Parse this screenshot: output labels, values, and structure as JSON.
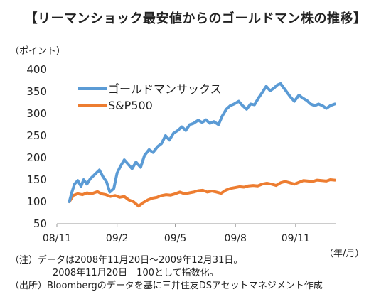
{
  "title": "【リーマンショック最安値からのゴールドマン株の推移】",
  "notes": [
    "（注）データは2008年11月20日～2009年12月31日。",
    "2008年11月20日＝100として指数化。",
    "（出所）Bloombergのデータを基に三井住友DSアセットマネジメント作成"
  ],
  "colors": {
    "goldman": "#5b9bd5",
    "sp500": "#ed7d31",
    "axis": "#999999"
  },
  "chart_data": {
    "type": "line",
    "ylabel": "（ポイント）",
    "xlabel": "（年/月）",
    "ylim": [
      50,
      400
    ],
    "yticks": [
      50,
      100,
      150,
      200,
      250,
      300,
      350,
      400
    ],
    "xlim": [
      "2008-11-01",
      "2010-01-01"
    ],
    "xticks": [
      {
        "label": "08/11",
        "date": "2008-11-01"
      },
      {
        "label": "09/2",
        "date": "2009-02-01"
      },
      {
        "label": "09/5",
        "date": "2009-05-01"
      },
      {
        "label": "09/8",
        "date": "2009-08-01"
      },
      {
        "label": "09/11",
        "date": "2009-11-01"
      }
    ],
    "legend_position": "top-left",
    "series": [
      {
        "name": "ゴールドマンサックス",
        "color": "#5b9bd5",
        "points": [
          [
            "2008-11-20",
            100
          ],
          [
            "2008-11-24",
            122
          ],
          [
            "2008-11-28",
            140
          ],
          [
            "2008-12-03",
            148
          ],
          [
            "2008-12-08",
            135
          ],
          [
            "2008-12-12",
            150
          ],
          [
            "2008-12-17",
            140
          ],
          [
            "2008-12-22",
            152
          ],
          [
            "2008-12-29",
            162
          ],
          [
            "2009-01-05",
            172
          ],
          [
            "2009-01-10",
            158
          ],
          [
            "2009-01-16",
            145
          ],
          [
            "2009-01-21",
            122
          ],
          [
            "2009-01-27",
            130
          ],
          [
            "2009-02-01",
            165
          ],
          [
            "2009-02-06",
            180
          ],
          [
            "2009-02-12",
            195
          ],
          [
            "2009-02-18",
            185
          ],
          [
            "2009-02-24",
            175
          ],
          [
            "2009-03-02",
            190
          ],
          [
            "2009-03-09",
            178
          ],
          [
            "2009-03-15",
            205
          ],
          [
            "2009-03-22",
            218
          ],
          [
            "2009-03-28",
            212
          ],
          [
            "2009-04-04",
            225
          ],
          [
            "2009-04-10",
            232
          ],
          [
            "2009-04-16",
            250
          ],
          [
            "2009-04-22",
            240
          ],
          [
            "2009-04-28",
            255
          ],
          [
            "2009-05-05",
            262
          ],
          [
            "2009-05-11",
            270
          ],
          [
            "2009-05-17",
            262
          ],
          [
            "2009-05-23",
            275
          ],
          [
            "2009-05-29",
            278
          ],
          [
            "2009-06-05",
            285
          ],
          [
            "2009-06-11",
            280
          ],
          [
            "2009-06-17",
            286
          ],
          [
            "2009-06-23",
            278
          ],
          [
            "2009-06-29",
            282
          ],
          [
            "2009-07-06",
            275
          ],
          [
            "2009-07-12",
            295
          ],
          [
            "2009-07-18",
            310
          ],
          [
            "2009-07-24",
            318
          ],
          [
            "2009-07-30",
            322
          ],
          [
            "2009-08-06",
            328
          ],
          [
            "2009-08-12",
            318
          ],
          [
            "2009-08-18",
            310
          ],
          [
            "2009-08-24",
            322
          ],
          [
            "2009-08-30",
            320
          ],
          [
            "2009-09-05",
            335
          ],
          [
            "2009-09-11",
            348
          ],
          [
            "2009-09-17",
            362
          ],
          [
            "2009-09-23",
            352
          ],
          [
            "2009-09-29",
            358
          ],
          [
            "2009-10-04",
            365
          ],
          [
            "2009-10-09",
            368
          ],
          [
            "2009-10-14",
            358
          ],
          [
            "2009-10-19",
            348
          ],
          [
            "2009-10-24",
            338
          ],
          [
            "2009-10-30",
            328
          ],
          [
            "2009-11-06",
            342
          ],
          [
            "2009-11-12",
            335
          ],
          [
            "2009-11-18",
            330
          ],
          [
            "2009-11-24",
            322
          ],
          [
            "2009-11-30",
            318
          ],
          [
            "2009-12-06",
            322
          ],
          [
            "2009-12-12",
            318
          ],
          [
            "2009-12-18",
            312
          ],
          [
            "2009-12-24",
            318
          ],
          [
            "2009-12-31",
            322
          ]
        ]
      },
      {
        "name": "S&P500",
        "color": "#ed7d31",
        "points": [
          [
            "2008-11-20",
            100
          ],
          [
            "2008-11-26",
            114
          ],
          [
            "2008-12-03",
            118
          ],
          [
            "2008-12-10",
            116
          ],
          [
            "2008-12-17",
            120
          ],
          [
            "2008-12-24",
            118
          ],
          [
            "2009-01-02",
            123
          ],
          [
            "2009-01-08",
            118
          ],
          [
            "2009-01-15",
            116
          ],
          [
            "2009-01-22",
            112
          ],
          [
            "2009-01-29",
            114
          ],
          [
            "2009-02-05",
            110
          ],
          [
            "2009-02-12",
            112
          ],
          [
            "2009-02-19",
            104
          ],
          [
            "2009-02-26",
            100
          ],
          [
            "2009-03-06",
            90
          ],
          [
            "2009-03-13",
            98
          ],
          [
            "2009-03-20",
            104
          ],
          [
            "2009-03-27",
            108
          ],
          [
            "2009-04-03",
            110
          ],
          [
            "2009-04-10",
            114
          ],
          [
            "2009-04-17",
            116
          ],
          [
            "2009-04-24",
            115
          ],
          [
            "2009-05-01",
            118
          ],
          [
            "2009-05-08",
            122
          ],
          [
            "2009-05-15",
            118
          ],
          [
            "2009-05-22",
            120
          ],
          [
            "2009-05-29",
            122
          ],
          [
            "2009-06-05",
            125
          ],
          [
            "2009-06-12",
            126
          ],
          [
            "2009-06-19",
            122
          ],
          [
            "2009-06-26",
            124
          ],
          [
            "2009-07-03",
            122
          ],
          [
            "2009-07-10",
            119
          ],
          [
            "2009-07-17",
            126
          ],
          [
            "2009-07-24",
            130
          ],
          [
            "2009-07-31",
            132
          ],
          [
            "2009-08-07",
            134
          ],
          [
            "2009-08-14",
            133
          ],
          [
            "2009-08-21",
            136
          ],
          [
            "2009-08-28",
            137
          ],
          [
            "2009-09-04",
            136
          ],
          [
            "2009-09-11",
            140
          ],
          [
            "2009-09-18",
            142
          ],
          [
            "2009-09-25",
            140
          ],
          [
            "2009-10-02",
            137
          ],
          [
            "2009-10-09",
            143
          ],
          [
            "2009-10-16",
            146
          ],
          [
            "2009-10-23",
            143
          ],
          [
            "2009-10-30",
            140
          ],
          [
            "2009-11-06",
            144
          ],
          [
            "2009-11-13",
            148
          ],
          [
            "2009-11-20",
            147
          ],
          [
            "2009-11-27",
            146
          ],
          [
            "2009-12-04",
            149
          ],
          [
            "2009-12-11",
            148
          ],
          [
            "2009-12-18",
            147
          ],
          [
            "2009-12-24",
            150
          ],
          [
            "2009-12-31",
            149
          ]
        ]
      }
    ]
  }
}
